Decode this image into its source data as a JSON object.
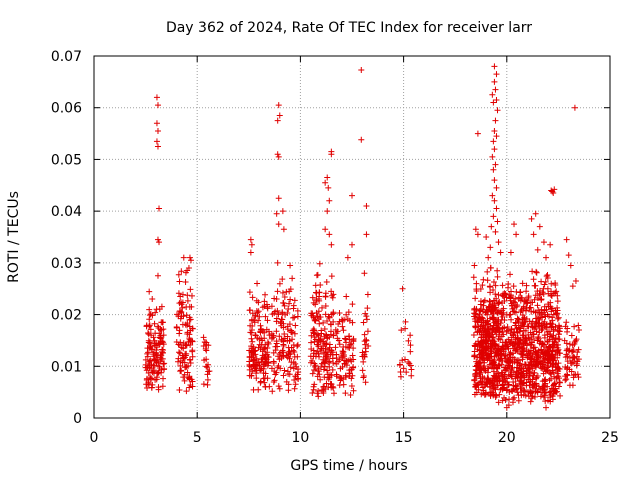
{
  "chart_data": {
    "type": "scatter",
    "title": "Day 362 of 2024, Rate Of TEC Index for receiver larr",
    "xlabel": "GPS time / hours",
    "ylabel": "ROTI / TECUs",
    "xlim": [
      0,
      25
    ],
    "ylim": [
      0,
      0.07
    ],
    "x_ticks": [
      "0",
      "5",
      "10",
      "15",
      "20",
      "25"
    ],
    "y_ticks": [
      "0",
      "0.01",
      "0.02",
      "0.03",
      "0.04",
      "0.05",
      "0.06",
      "0.07"
    ],
    "grid": true,
    "marker": "+",
    "color": "#e00000",
    "clusters": [
      {
        "x": [
          2.5,
          3.4
        ],
        "y": [
          0.005,
          0.025
        ],
        "n": 140
      },
      {
        "x": [
          4.0,
          4.8
        ],
        "y": [
          0.005,
          0.03
        ],
        "n": 110
      },
      {
        "x": [
          5.3,
          5.6
        ],
        "y": [
          0.006,
          0.02
        ],
        "n": 20
      },
      {
        "x": [
          7.5,
          8.5
        ],
        "y": [
          0.005,
          0.026
        ],
        "n": 150
      },
      {
        "x": [
          8.6,
          9.9
        ],
        "y": [
          0.005,
          0.03
        ],
        "n": 140
      },
      {
        "x": [
          10.5,
          11.6
        ],
        "y": [
          0.004,
          0.03
        ],
        "n": 180
      },
      {
        "x": [
          11.6,
          12.6
        ],
        "y": [
          0.004,
          0.025
        ],
        "n": 90
      },
      {
        "x": [
          13.0,
          13.3
        ],
        "y": [
          0.005,
          0.03
        ],
        "n": 25
      },
      {
        "x": [
          14.8,
          15.4
        ],
        "y": [
          0.006,
          0.02
        ],
        "n": 20
      },
      {
        "x": [
          18.4,
          19.6
        ],
        "y": [
          0.004,
          0.03
        ],
        "n": 420
      },
      {
        "x": [
          19.6,
          21.0
        ],
        "y": [
          0.003,
          0.03
        ],
        "n": 380
      },
      {
        "x": [
          21.0,
          22.6
        ],
        "y": [
          0.003,
          0.03
        ],
        "n": 420
      },
      {
        "x": [
          22.8,
          23.5
        ],
        "y": [
          0.006,
          0.02
        ],
        "n": 60
      }
    ],
    "points": [
      [
        3.05,
        0.062
      ],
      [
        3.1,
        0.0605
      ],
      [
        3.05,
        0.057
      ],
      [
        3.1,
        0.0555
      ],
      [
        3.05,
        0.0535
      ],
      [
        3.1,
        0.0525
      ],
      [
        3.15,
        0.0405
      ],
      [
        3.1,
        0.0345
      ],
      [
        3.15,
        0.034
      ],
      [
        3.1,
        0.0275
      ],
      [
        4.65,
        0.031
      ],
      [
        4.7,
        0.0305
      ],
      [
        4.35,
        0.031
      ],
      [
        4.6,
        0.029
      ],
      [
        7.6,
        0.0345
      ],
      [
        7.65,
        0.0335
      ],
      [
        7.6,
        0.032
      ],
      [
        7.9,
        0.026
      ],
      [
        8.95,
        0.0605
      ],
      [
        9.0,
        0.0585
      ],
      [
        8.9,
        0.0575
      ],
      [
        8.9,
        0.051
      ],
      [
        8.95,
        0.0505
      ],
      [
        8.95,
        0.0425
      ],
      [
        8.85,
        0.0395
      ],
      [
        9.15,
        0.04
      ],
      [
        8.95,
        0.0375
      ],
      [
        9.2,
        0.0365
      ],
      [
        8.9,
        0.03
      ],
      [
        9.5,
        0.0295
      ],
      [
        9.6,
        0.027
      ],
      [
        11.5,
        0.0515
      ],
      [
        11.5,
        0.051
      ],
      [
        11.3,
        0.0465
      ],
      [
        11.2,
        0.0455
      ],
      [
        11.35,
        0.0445
      ],
      [
        11.4,
        0.042
      ],
      [
        11.3,
        0.04
      ],
      [
        11.2,
        0.0365
      ],
      [
        11.4,
        0.0355
      ],
      [
        11.5,
        0.0335
      ],
      [
        12.5,
        0.043
      ],
      [
        12.5,
        0.0335
      ],
      [
        12.3,
        0.031
      ],
      [
        12.95,
        0.0673
      ],
      [
        12.95,
        0.0538
      ],
      [
        13.2,
        0.041
      ],
      [
        13.2,
        0.0355
      ],
      [
        13.1,
        0.028
      ],
      [
        14.95,
        0.025
      ],
      [
        18.6,
        0.055
      ],
      [
        18.5,
        0.0365
      ],
      [
        18.6,
        0.0355
      ],
      [
        19.4,
        0.068
      ],
      [
        19.5,
        0.0665
      ],
      [
        19.4,
        0.065
      ],
      [
        19.45,
        0.0635
      ],
      [
        19.3,
        0.0625
      ],
      [
        19.5,
        0.0615
      ],
      [
        19.35,
        0.061
      ],
      [
        19.55,
        0.0595
      ],
      [
        19.45,
        0.0575
      ],
      [
        19.4,
        0.0555
      ],
      [
        19.5,
        0.0545
      ],
      [
        19.35,
        0.0535
      ],
      [
        19.4,
        0.052
      ],
      [
        19.3,
        0.0505
      ],
      [
        19.45,
        0.049
      ],
      [
        19.35,
        0.048
      ],
      [
        19.4,
        0.046
      ],
      [
        19.5,
        0.0445
      ],
      [
        19.3,
        0.043
      ],
      [
        19.4,
        0.042
      ],
      [
        19.5,
        0.0405
      ],
      [
        19.35,
        0.039
      ],
      [
        19.55,
        0.038
      ],
      [
        19.25,
        0.037
      ],
      [
        19.45,
        0.036
      ],
      [
        19.0,
        0.035
      ],
      [
        19.6,
        0.034
      ],
      [
        19.2,
        0.033
      ],
      [
        19.7,
        0.032
      ],
      [
        19.1,
        0.031
      ],
      [
        20.35,
        0.0375
      ],
      [
        20.45,
        0.0355
      ],
      [
        20.2,
        0.032
      ],
      [
        21.4,
        0.0395
      ],
      [
        21.2,
        0.0385
      ],
      [
        21.6,
        0.037
      ],
      [
        21.3,
        0.0355
      ],
      [
        21.8,
        0.034
      ],
      [
        21.5,
        0.0325
      ],
      [
        21.9,
        0.031
      ],
      [
        22.1,
        0.0335
      ],
      [
        22.15,
        0.044
      ],
      [
        22.25,
        0.0435
      ],
      [
        22.3,
        0.0442
      ],
      [
        22.2,
        0.0438
      ],
      [
        22.9,
        0.0345
      ],
      [
        23.0,
        0.0315
      ],
      [
        23.1,
        0.0295
      ],
      [
        23.35,
        0.0265
      ],
      [
        23.2,
        0.0255
      ],
      [
        23.3,
        0.06
      ],
      [
        20.0,
        0.002
      ],
      [
        21.9,
        0.002
      ],
      [
        20.1,
        0.0025
      ]
    ]
  }
}
